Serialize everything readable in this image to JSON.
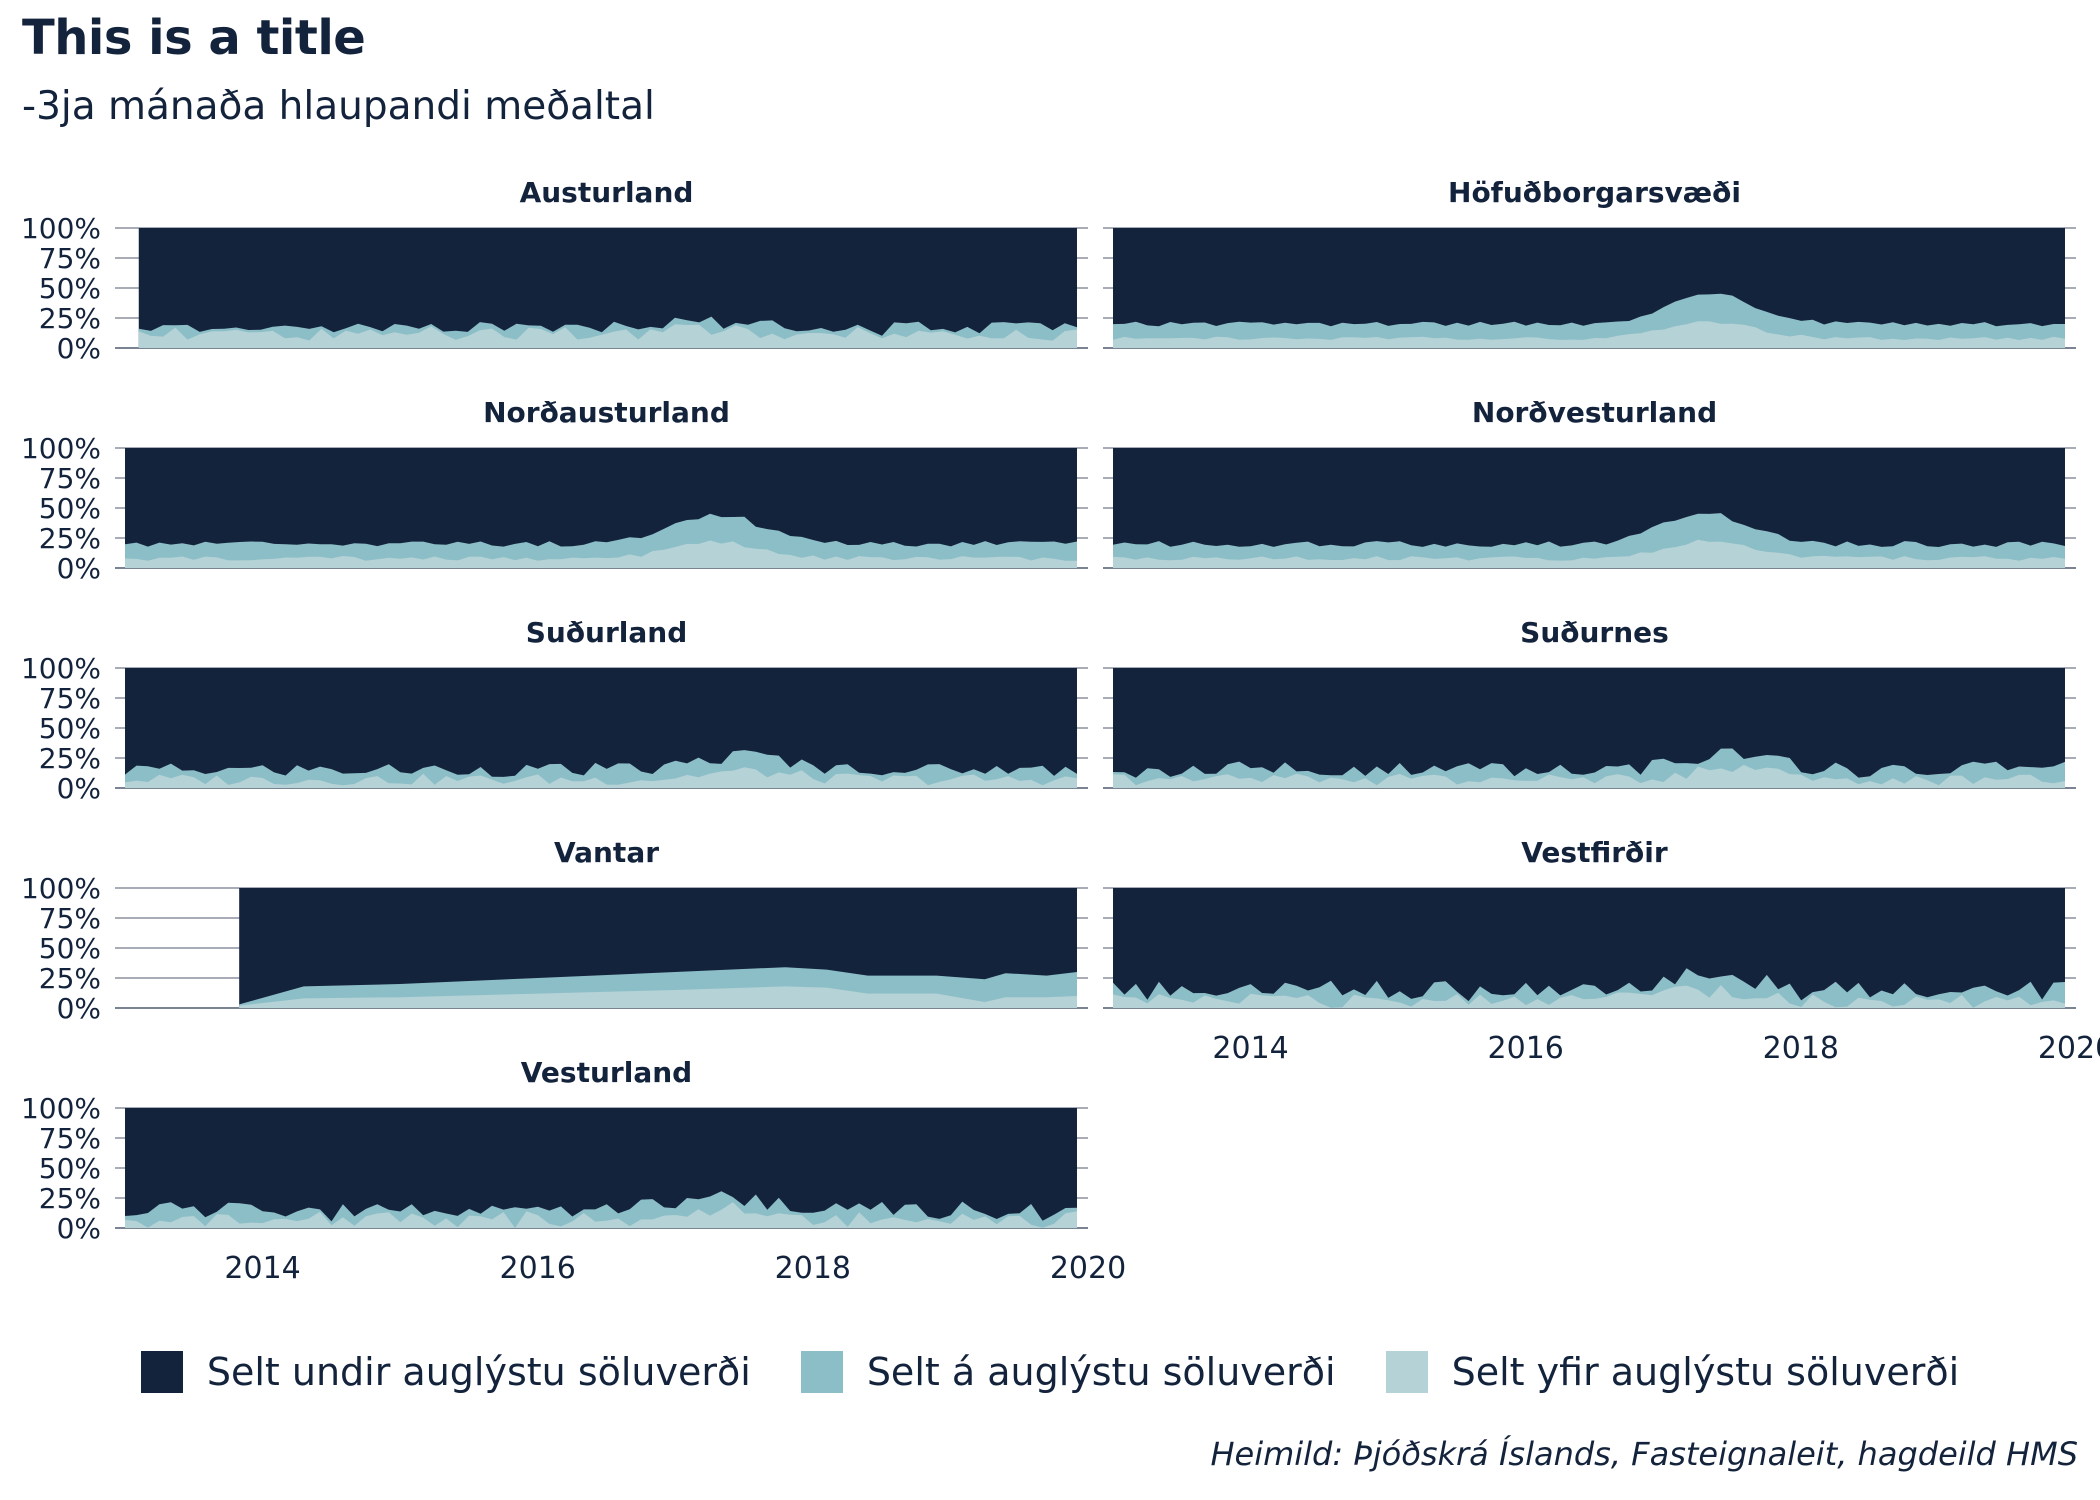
{
  "title": "This is a title",
  "subtitle": "-3ja mánaða hlaupandi meðaltal",
  "caption": "Heimild: Þjóðskrá Íslands, Fasteignaleit, hagdeild HMS",
  "colors": {
    "undir": "#14233c",
    "a": "#8cbec7",
    "yfir": "#b5d2d6",
    "grid": "#14233c",
    "text": "#14233c"
  },
  "legend": [
    {
      "key": "undir",
      "label": "Selt undir auglýstu söluverði"
    },
    {
      "key": "a",
      "label": "Selt á auglýstu söluverði"
    },
    {
      "key": "yfir",
      "label": "Selt yfir auglýstu söluverði"
    }
  ],
  "chart_data": {
    "type": "area",
    "stacked": true,
    "facet_layout": "2 columns, 4 rows",
    "xlim": [
      2013,
      2020
    ],
    "x_ticks": [
      2014,
      2016,
      2018,
      2020
    ],
    "ylim": [
      0,
      100
    ],
    "y_ticks": [
      "0%",
      "25%",
      "50%",
      "75%",
      "100%"
    ],
    "legend_position": "bottom",
    "panels": [
      {
        "name": "Austurland",
        "x_start": 2013.1,
        "x_end": 2019.92,
        "n": 78,
        "base_above": 12,
        "amp_above": 6,
        "base_total": 15,
        "amp_total": 7,
        "bump_center": 2017.3,
        "bump_height": 6,
        "phase": 1.3
      },
      {
        "name": "Höfuðborgarsvæði",
        "x_start": 2013.0,
        "x_end": 2019.92,
        "n": 84,
        "base_above": 8,
        "amp_above": 1.5,
        "base_total": 20,
        "amp_total": 2,
        "bump_center": 2017.35,
        "bump_height": 25,
        "phase": 0.4
      },
      {
        "name": "Norðausturland",
        "x_start": 2013.0,
        "x_end": 2019.92,
        "n": 84,
        "base_above": 8,
        "amp_above": 2,
        "base_total": 20,
        "amp_total": 2.5,
        "bump_center": 2017.3,
        "bump_height": 25,
        "phase": 2.1
      },
      {
        "name": "Norðvesturland",
        "x_start": 2013.0,
        "x_end": 2019.92,
        "n": 84,
        "base_above": 8,
        "amp_above": 2,
        "base_total": 20,
        "amp_total": 2.5,
        "bump_center": 2017.3,
        "bump_height": 25,
        "phase": 0.9
      },
      {
        "name": "Suðurland",
        "x_start": 2013.0,
        "x_end": 2019.92,
        "n": 84,
        "base_above": 7,
        "amp_above": 5,
        "base_total": 15,
        "amp_total": 6,
        "bump_center": 2017.5,
        "bump_height": 12,
        "phase": 3.0
      },
      {
        "name": "Suðurnes",
        "x_start": 2013.0,
        "x_end": 2019.92,
        "n": 84,
        "base_above": 7,
        "amp_above": 5,
        "base_total": 15,
        "amp_total": 7,
        "bump_center": 2017.5,
        "bump_height": 15,
        "phase": 1.7
      },
      {
        "name": "Vantar",
        "x_start": 2013.83,
        "x_end": 2019.92,
        "smooth": true,
        "points_x": [
          2013.83,
          2014.3,
          2015.0,
          2016.0,
          2017.0,
          2017.8,
          2018.1,
          2018.4,
          2018.9,
          2019.25,
          2019.4,
          2019.7,
          2019.92
        ],
        "points_total": [
          3,
          18,
          20,
          25,
          30,
          34,
          32,
          27,
          27,
          24,
          29,
          27,
          30
        ],
        "points_above": [
          2,
          8,
          9,
          12,
          15,
          18,
          17,
          12,
          12,
          5,
          9,
          9,
          10
        ]
      },
      {
        "name": "Vestfirðir",
        "x_start": 2013.0,
        "x_end": 2019.92,
        "n": 84,
        "base_above": 6,
        "amp_above": 6,
        "base_total": 14,
        "amp_total": 9,
        "bump_center": 2017.3,
        "bump_height": 14,
        "phase": 2.6
      },
      {
        "name": "Vesturland",
        "x_start": 2013.0,
        "x_end": 2019.92,
        "n": 84,
        "base_above": 7,
        "amp_above": 7,
        "base_total": 14,
        "amp_total": 9,
        "bump_center": 2017.3,
        "bump_height": 16,
        "phase": 0.2
      }
    ]
  }
}
